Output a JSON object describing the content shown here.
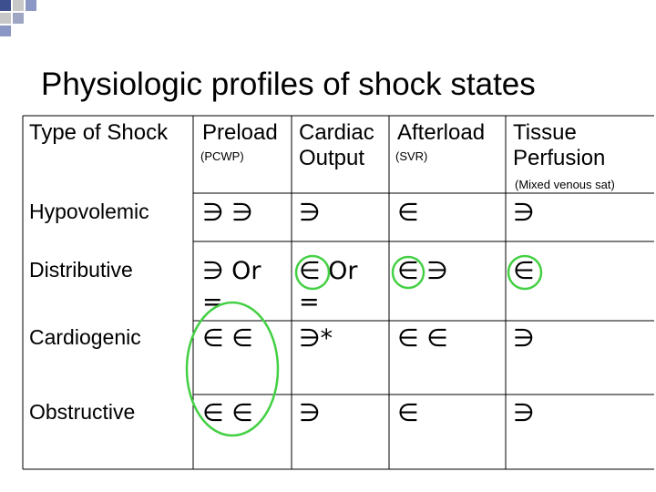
{
  "title": "Physiologic profiles of shock states",
  "table": {
    "header": [
      {
        "label": "Type of Shock"
      },
      {
        "label": "Preload",
        "sub": "(PCWP)"
      },
      {
        "label": "Cardiac Output"
      },
      {
        "label": "Afterload",
        "sub": "(SVR)"
      },
      {
        "label": "Tissue Perfusion",
        "sub": "(Mixed venous sat)"
      }
    ],
    "rows": [
      {
        "label": "Hypovolemic",
        "cells": [
          [
            "∋ ∋"
          ],
          [
            "∋"
          ],
          [
            "∈"
          ],
          [
            "∋"
          ]
        ]
      },
      {
        "label": "Distributive",
        "cells": [
          [
            "∋ Or",
            "="
          ],
          [
            "∈ Or",
            "="
          ],
          [
            "∈ ∋"
          ],
          [
            "∈"
          ]
        ]
      },
      {
        "label": "Cardiogenic",
        "cells": [
          [
            "∈ ∈"
          ],
          [
            "∋*"
          ],
          [
            "∈ ∈"
          ],
          [
            "∋"
          ]
        ]
      },
      {
        "label": "Obstructive",
        "cells": [
          [
            "∈ ∈"
          ],
          [
            "∋"
          ],
          [
            "∈"
          ],
          [
            "∋"
          ]
        ]
      }
    ]
  }
}
